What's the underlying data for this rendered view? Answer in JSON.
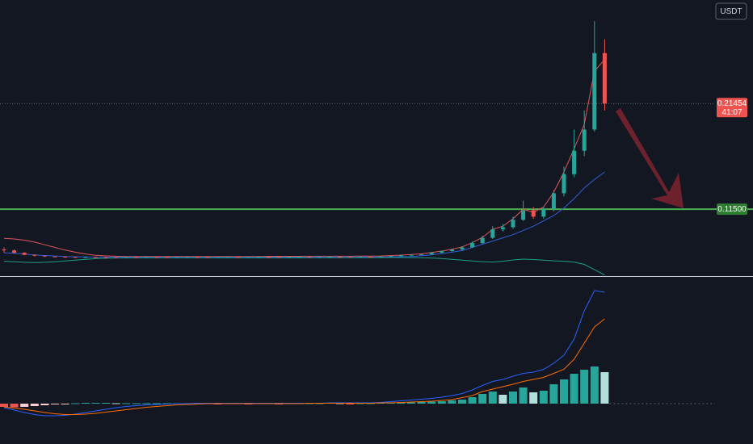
{
  "chart_data": {
    "type": "candlestick",
    "currency": "USDT",
    "countdown": "41:07",
    "level": {
      "value": 0.115,
      "label": "0.11500"
    },
    "ylim": [
      0.052,
      0.312
    ],
    "up_color": "#26a69a",
    "down_color": "#ef5350",
    "open": [
      0.077,
      0.0762,
      0.074,
      0.072,
      0.0712,
      0.0705,
      0.0702,
      0.07,
      0.0698,
      0.0699,
      0.0697,
      0.0696,
      0.0695,
      0.0697,
      0.0696,
      0.0698,
      0.0697,
      0.0696,
      0.0697,
      0.0699,
      0.0698,
      0.0697,
      0.0698,
      0.0699,
      0.0697,
      0.0698,
      0.07,
      0.0699,
      0.0698,
      0.07,
      0.0701,
      0.0699,
      0.07,
      0.0702,
      0.0701,
      0.07,
      0.0702,
      0.07,
      0.0705,
      0.071,
      0.0715,
      0.072,
      0.0725,
      0.074,
      0.0755,
      0.077,
      0.079,
      0.083,
      0.088,
      0.096,
      0.098,
      0.105,
      0.114,
      0.108,
      0.115,
      0.13,
      0.148,
      0.17,
      0.19,
      0.262
    ],
    "high": [
      0.079,
      0.077,
      0.0745,
      0.0725,
      0.0715,
      0.0708,
      0.0705,
      0.0703,
      0.0703,
      0.0702,
      0.07,
      0.07,
      0.07,
      0.07,
      0.0701,
      0.0701,
      0.07,
      0.07,
      0.0702,
      0.0702,
      0.0701,
      0.0701,
      0.0702,
      0.0702,
      0.0701,
      0.0703,
      0.0703,
      0.0702,
      0.0703,
      0.0704,
      0.0704,
      0.0703,
      0.0705,
      0.0705,
      0.0703,
      0.0705,
      0.0705,
      0.0708,
      0.0714,
      0.0719,
      0.0724,
      0.073,
      0.0745,
      0.076,
      0.0778,
      0.08,
      0.0845,
      0.09,
      0.099,
      0.101,
      0.108,
      0.123,
      0.117,
      0.117,
      0.133,
      0.155,
      0.19,
      0.208,
      0.292,
      0.275
    ],
    "low": [
      0.074,
      0.073,
      0.0715,
      0.0705,
      0.07,
      0.0698,
      0.0696,
      0.0694,
      0.0694,
      0.0693,
      0.0692,
      0.0691,
      0.0692,
      0.0692,
      0.0693,
      0.0693,
      0.0692,
      0.0693,
      0.0694,
      0.0694,
      0.0693,
      0.0694,
      0.0695,
      0.0694,
      0.0694,
      0.0695,
      0.0695,
      0.0694,
      0.0695,
      0.0697,
      0.0696,
      0.0696,
      0.0697,
      0.0697,
      0.0696,
      0.0697,
      0.0697,
      0.0698,
      0.0702,
      0.0708,
      0.0712,
      0.0718,
      0.0722,
      0.0736,
      0.075,
      0.0765,
      0.0785,
      0.0825,
      0.087,
      0.094,
      0.0965,
      0.104,
      0.106,
      0.106,
      0.113,
      0.127,
      0.145,
      0.165,
      0.188,
      0.208
    ],
    "close": [
      0.0762,
      0.074,
      0.072,
      0.0712,
      0.0705,
      0.0702,
      0.07,
      0.0698,
      0.0699,
      0.0697,
      0.0696,
      0.0695,
      0.0697,
      0.0696,
      0.0698,
      0.0697,
      0.0696,
      0.0697,
      0.0699,
      0.0698,
      0.0697,
      0.0698,
      0.0699,
      0.0697,
      0.0698,
      0.07,
      0.0699,
      0.0698,
      0.07,
      0.0701,
      0.0699,
      0.07,
      0.0702,
      0.0701,
      0.07,
      0.0702,
      0.07,
      0.0705,
      0.071,
      0.0715,
      0.072,
      0.0725,
      0.074,
      0.0755,
      0.077,
      0.079,
      0.083,
      0.088,
      0.096,
      0.098,
      0.105,
      0.114,
      0.108,
      0.115,
      0.13,
      0.148,
      0.17,
      0.19,
      0.262,
      0.21454
    ],
    "overlays": [
      {
        "color": "#e0565b",
        "values": [
          0.0876,
          0.087,
          0.0858,
          0.084,
          0.0815,
          0.079,
          0.0765,
          0.0745,
          0.0728,
          0.0716,
          0.071,
          0.0707,
          0.0705,
          0.0704,
          0.0704,
          0.0704,
          0.0704,
          0.0704,
          0.0704,
          0.0705,
          0.0705,
          0.0705,
          0.0705,
          0.0705,
          0.0705,
          0.0705,
          0.0706,
          0.0706,
          0.0706,
          0.0706,
          0.0707,
          0.0707,
          0.0707,
          0.0707,
          0.0707,
          0.0708,
          0.0708,
          0.0709,
          0.0713,
          0.0718,
          0.0724,
          0.073,
          0.0742,
          0.0756,
          0.0772,
          0.0795,
          0.0835,
          0.0885,
          0.096,
          0.099,
          0.106,
          0.115,
          0.112,
          0.117,
          0.131,
          0.15,
          0.172,
          0.195,
          0.245,
          0.256
        ]
      },
      {
        "color": "#2f5fd6",
        "values": [
          0.074,
          0.0735,
          0.0728,
          0.072,
          0.0714,
          0.0709,
          0.0705,
          0.0702,
          0.07,
          0.0699,
          0.0698,
          0.0698,
          0.0698,
          0.0698,
          0.0698,
          0.0698,
          0.0698,
          0.0698,
          0.0698,
          0.0698,
          0.0698,
          0.0698,
          0.0698,
          0.0698,
          0.0698,
          0.0699,
          0.0699,
          0.0699,
          0.0699,
          0.0699,
          0.07,
          0.07,
          0.07,
          0.07,
          0.07,
          0.07,
          0.07,
          0.0701,
          0.0702,
          0.0703,
          0.0705,
          0.0712,
          0.072,
          0.0732,
          0.0745,
          0.076,
          0.079,
          0.082,
          0.085,
          0.088,
          0.091,
          0.095,
          0.099,
          0.104,
          0.109,
          0.116,
          0.125,
          0.135,
          0.143,
          0.15
        ]
      },
      {
        "color": "#1e9e86",
        "values": [
          0.066,
          0.0655,
          0.065,
          0.0648,
          0.065,
          0.0655,
          0.0662,
          0.067,
          0.0678,
          0.0684,
          0.0688,
          0.069,
          0.0691,
          0.0691,
          0.0692,
          0.0692,
          0.0692,
          0.0692,
          0.0692,
          0.0692,
          0.0692,
          0.0692,
          0.0692,
          0.0692,
          0.0692,
          0.0692,
          0.0692,
          0.0692,
          0.0692,
          0.0692,
          0.0693,
          0.0693,
          0.0693,
          0.0693,
          0.0694,
          0.0694,
          0.0694,
          0.0694,
          0.0695,
          0.0695,
          0.0694,
          0.0693,
          0.069,
          0.0685,
          0.0678,
          0.067,
          0.0662,
          0.0655,
          0.0652,
          0.066,
          0.0672,
          0.068,
          0.0676,
          0.067,
          0.0664,
          0.066,
          0.0652,
          0.063,
          0.058,
          0.053
        ]
      }
    ],
    "macd_ylim": [
      -0.01,
      0.0314
    ],
    "histogram": [
      -0.0008,
      -0.0009,
      -0.0008,
      -0.0006,
      -0.0004,
      -0.0002,
      -0.0001,
      0.0001,
      0.0002,
      0.0002,
      0.0002,
      0.0001,
      0.0001,
      0.0001,
      0.0001,
      0.0001,
      0.0001,
      0.0001,
      0.0001,
      0.0001,
      0.0001,
      -0.0001,
      0.0001,
      0.0001,
      -0.0001,
      0.0001,
      0.0001,
      -0.0001,
      0.0001,
      0.0001,
      0.0001,
      0.0001,
      0.0002,
      0.0001,
      -0.0001,
      0.0001,
      0.0001,
      0.0002,
      0.0003,
      0.0003,
      0.0003,
      0.0004,
      0.0005,
      0.0006,
      0.0008,
      0.001,
      0.0016,
      0.0024,
      0.003,
      0.0022,
      0.003,
      0.004,
      0.0028,
      0.0032,
      0.0048,
      0.006,
      0.0074,
      0.0084,
      0.0092,
      0.0078
    ],
    "hist_colors": {
      "up_rising": "#26a69a",
      "up_falling": "#b2dfdb",
      "down_falling": "#ef5350",
      "down_rising": "#ffcdd2"
    },
    "macd_lines": [
      {
        "color": "#2962ff",
        "values": [
          -0.001,
          -0.0016,
          -0.0022,
          -0.0027,
          -0.003,
          -0.003,
          -0.0029,
          -0.0026,
          -0.0022,
          -0.0018,
          -0.0014,
          -0.001,
          -0.0007,
          -0.0005,
          -0.0003,
          -0.0002,
          -0.0001,
          0.0,
          0.0,
          0.0001,
          0.0001,
          0.0001,
          0.0001,
          0.0001,
          0.0001,
          0.0001,
          0.0001,
          0.0001,
          0.0001,
          0.0001,
          0.0001,
          0.0001,
          0.0002,
          0.0002,
          0.0002,
          0.0002,
          0.0002,
          0.0003,
          0.0005,
          0.0007,
          0.0009,
          0.0011,
          0.0013,
          0.0016,
          0.002,
          0.0025,
          0.0034,
          0.0045,
          0.0055,
          0.006,
          0.0068,
          0.0075,
          0.0078,
          0.0085,
          0.01,
          0.012,
          0.016,
          0.023,
          0.028,
          0.0276
        ]
      },
      {
        "color": "#ff6d00",
        "values": [
          -0.0008,
          -0.0011,
          -0.0014,
          -0.0018,
          -0.0022,
          -0.0025,
          -0.0027,
          -0.0027,
          -0.0026,
          -0.0024,
          -0.0021,
          -0.0018,
          -0.0015,
          -0.0012,
          -0.0009,
          -0.0007,
          -0.0005,
          -0.0003,
          -0.0002,
          -0.0001,
          0.0,
          0.0,
          0.0,
          0.0,
          0.0,
          0.0,
          0.0,
          0.0,
          0.0,
          0.0,
          0.0001,
          0.0001,
          0.0001,
          0.0001,
          0.0001,
          0.0001,
          0.0001,
          0.0002,
          0.0002,
          0.0003,
          0.0004,
          0.0005,
          0.0006,
          0.0008,
          0.001,
          0.0015,
          0.002,
          0.003,
          0.0036,
          0.0042,
          0.0048,
          0.0055,
          0.006,
          0.0065,
          0.0075,
          0.0085,
          0.011,
          0.015,
          0.019,
          0.021
        ]
      }
    ]
  }
}
